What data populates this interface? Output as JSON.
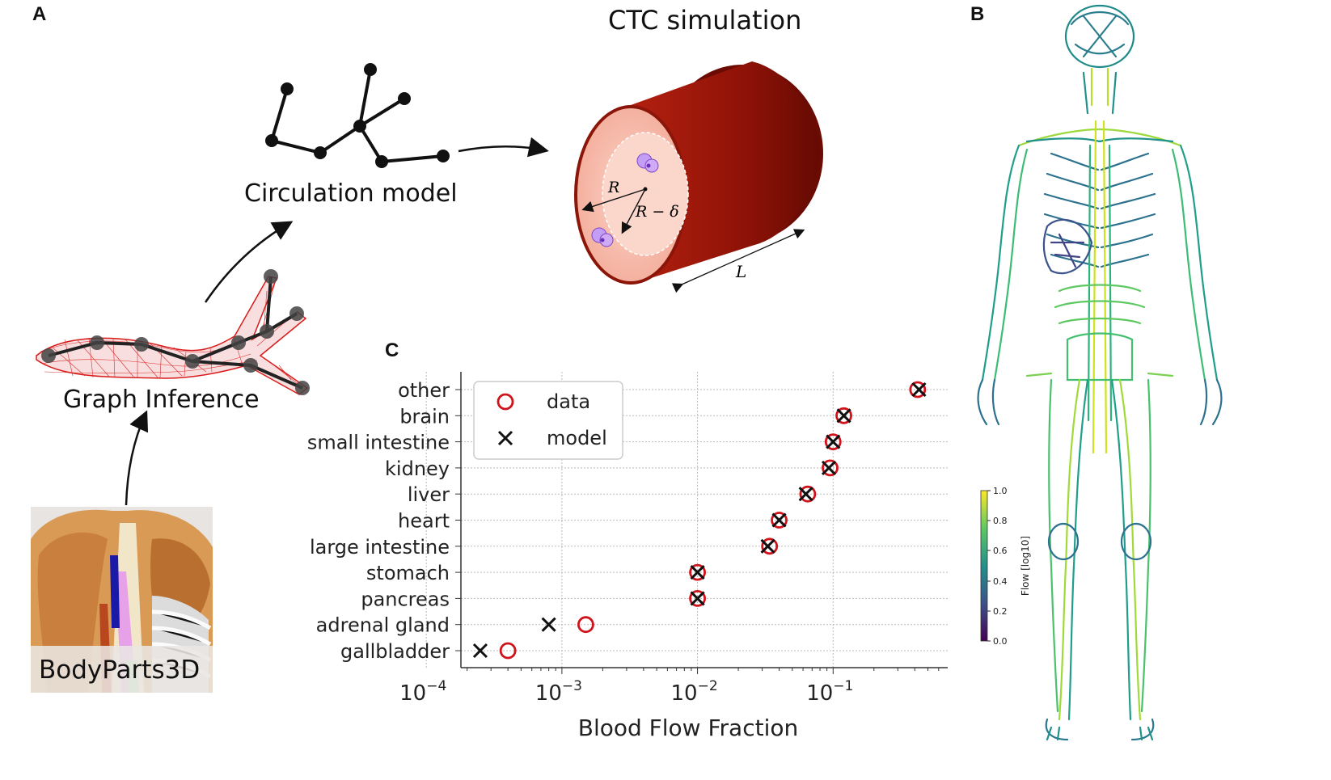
{
  "panels": {
    "a": "A",
    "b": "B",
    "c": "C"
  },
  "captions": {
    "ctc_title": "CTC simulation",
    "circulation_model": "Circulation model",
    "graph_inference": "Graph Inference",
    "bodyparts": "BodyParts3D"
  },
  "vessel": {
    "r_label": "R",
    "r_minus_delta": "R − δ",
    "l_label": "L"
  },
  "colorbar": {
    "label": "Flow [log10]",
    "ticks": [
      "0.0",
      "0.2",
      "0.4",
      "0.6",
      "0.8",
      "1.0"
    ]
  },
  "colors": {
    "vessel_dark": "#7a0d05",
    "vessel_mid": "#b01a0c",
    "lumen": "#f6c2b4",
    "data_marker": "#d0121b",
    "model_marker": "#111111"
  },
  "chart_data": {
    "type": "scatter",
    "xlabel": "Blood Flow Fraction",
    "xscale": "log",
    "xlim": [
      0.00018,
      0.7
    ],
    "xticks": [
      {
        "value": 0.0001,
        "base": "10",
        "exp": "−4"
      },
      {
        "value": 0.001,
        "base": "10",
        "exp": "−3"
      },
      {
        "value": 0.01,
        "base": "10",
        "exp": "−2"
      },
      {
        "value": 0.1,
        "base": "10",
        "exp": "−1"
      }
    ],
    "grid": true,
    "legend_position": "top-left",
    "categories": [
      "other",
      "brain",
      "small intestine",
      "kidney",
      "liver",
      "heart",
      "large intestine",
      "stomach",
      "pancreas",
      "adrenal gland",
      "gallbladder"
    ],
    "series": [
      {
        "name": "data",
        "marker": "circle",
        "values": [
          0.42,
          0.12,
          0.1,
          0.095,
          0.065,
          0.04,
          0.034,
          0.01,
          0.01,
          0.0015,
          0.0004
        ]
      },
      {
        "name": "model",
        "marker": "x",
        "values": [
          0.43,
          0.12,
          0.1,
          0.093,
          0.063,
          0.04,
          0.033,
          0.01,
          0.01,
          0.0008,
          0.00025
        ]
      }
    ]
  }
}
